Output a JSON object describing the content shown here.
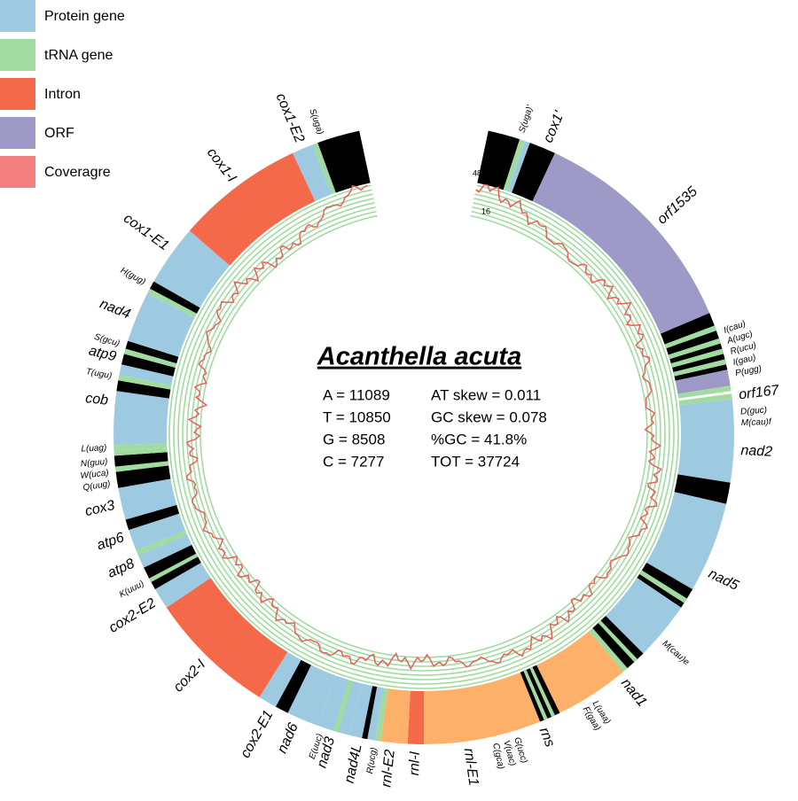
{
  "legend": [
    "Protein gene",
    "tRNA gene",
    "Intron",
    "ORF",
    "Coveragre"
  ],
  "title": "Acanthella acuta",
  "stats": [
    [
      "A = 11089",
      "AT skew = 0.011"
    ],
    [
      "T = 10850",
      "GC skew = 0.078"
    ],
    [
      "G = 8508",
      "%GC = 41.8%"
    ],
    [
      "C = 7277",
      "TOT = 37724"
    ]
  ],
  "coverage_axis": [
    "4800",
    "16"
  ],
  "gene_labels": [
    "S(uga)'",
    "cox1'",
    "orf1535",
    "I(cau)",
    "A(ugc)",
    "R(ucu)",
    "I(gau)",
    "P(ugg)",
    "orf167",
    "D(guc)",
    "M(cau)f",
    "nad2",
    "nad5",
    "M(cau)e",
    "nad1",
    "L(uaa)",
    "F(gaa)",
    "rns",
    "G(ucc)",
    "V(uac)",
    "C(gca)",
    "rnl-E1",
    "rnl-I",
    "rnl-E2",
    "R(ucg)",
    "nad4L",
    "nad3",
    "E(uuc)",
    "nad6",
    "cox2-E1",
    "cox2-I",
    "cox2-E2",
    "K(uuu)",
    "atp8",
    "atp6",
    "cox3",
    "Q(uug)",
    "W(uca)",
    "N(guu)",
    "L(uag)",
    "cob",
    "T(ugu)",
    "atp9",
    "S(gcu)",
    "nad4",
    "H(gug)",
    "cox1-E1",
    "cox1-I",
    "cox1-E2",
    "S(uga)"
  ]
}
